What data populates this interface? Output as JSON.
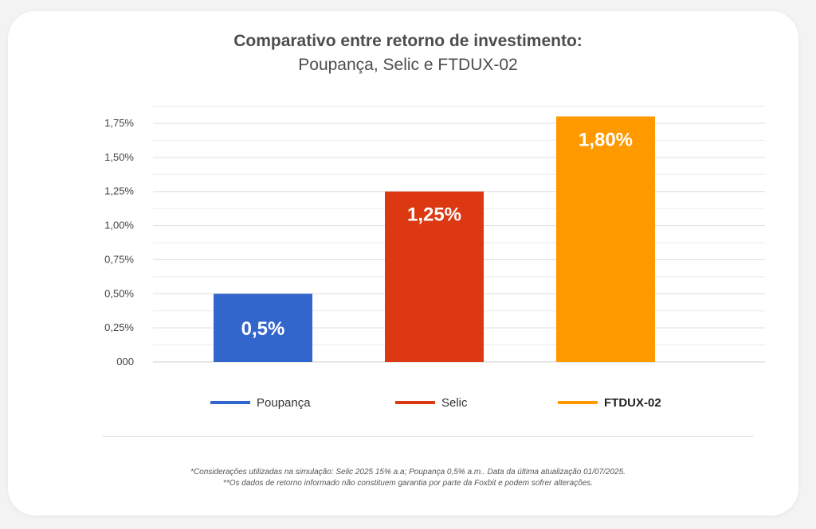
{
  "chart_data": {
    "type": "bar",
    "title": "Comparativo entre retorno de investimento:",
    "subtitle": "Poupança, Selic e FTDUX-02",
    "categories": [
      "Poupança",
      "Selic",
      "FTDUX-02"
    ],
    "values": [
      0.5,
      1.25,
      1.8
    ],
    "data_labels": [
      "0,5%",
      "1,25%",
      "1,80%"
    ],
    "colors": [
      "#3366cc",
      "#dc3912",
      "#ff9900"
    ],
    "yticks": [
      {
        "value": 0,
        "label": "000"
      },
      {
        "value": 0.25,
        "label": "0,25%"
      },
      {
        "value": 0.5,
        "label": "0,50%"
      },
      {
        "value": 0.75,
        "label": "0,75%"
      },
      {
        "value": 1.0,
        "label": "1,00%"
      },
      {
        "value": 1.25,
        "label": "1,25%"
      },
      {
        "value": 1.5,
        "label": "1,50%"
      },
      {
        "value": 1.75,
        "label": "1,75%"
      }
    ],
    "ylim": [
      0,
      1.75
    ],
    "grid": true,
    "legend": {
      "position": "bottom",
      "entries": [
        "Poupança",
        "Selic",
        "FTDUX-02"
      ],
      "bold_entry": "FTDUX-02"
    }
  },
  "footnotes": [
    "*Considerações utilizadas na simulação: Selic 2025 15% a.a; Poupança 0,5% a.m.. Data da última atualização 01/07/2025.",
    "**Os dados de retorno informado não constituem garantia por parte da Foxbit e podem sofrer alterações."
  ]
}
